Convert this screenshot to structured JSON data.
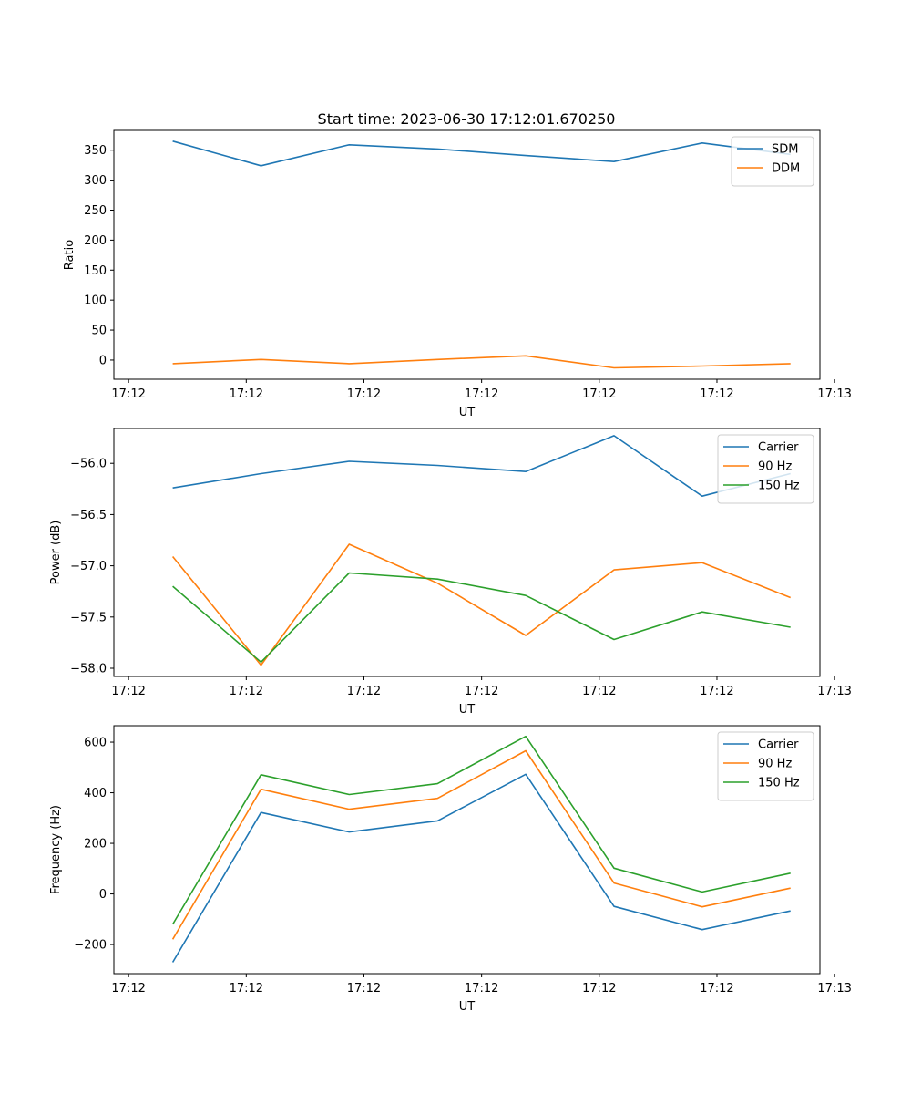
{
  "figure_title": "Start time: 2023-06-30 17:12:01.670250",
  "chart_data": [
    {
      "type": "line",
      "title": "Start time: 2023-06-30 17:12:01.670250",
      "xlabel": "UT",
      "ylabel": "Ratio",
      "x_ticks": [
        "17:12",
        "17:12",
        "17:12",
        "17:12",
        "17:12",
        "17:12",
        "17:13"
      ],
      "y_ticks": [
        0,
        50,
        100,
        150,
        200,
        250,
        300,
        350
      ],
      "xlim": [
        0,
        24
      ],
      "ylim": [
        -32,
        383
      ],
      "legend": "top-right",
      "x": [
        2,
        5,
        8,
        11,
        14,
        17,
        20,
        23
      ],
      "series": [
        {
          "name": "SDM",
          "color": "#1f77b4",
          "values": [
            365,
            324,
            359,
            352,
            341,
            331,
            362,
            343
          ]
        },
        {
          "name": "DDM",
          "color": "#ff7f0e",
          "values": [
            -6,
            1,
            -6,
            1,
            7,
            -13,
            -10,
            -6
          ]
        }
      ]
    },
    {
      "type": "line",
      "title": "",
      "xlabel": "UT",
      "ylabel": "Power (dB)",
      "x_ticks": [
        "17:12",
        "17:12",
        "17:12",
        "17:12",
        "17:12",
        "17:12",
        "17:13"
      ],
      "y_ticks": [
        -58.0,
        -57.5,
        -57.0,
        -56.5,
        -56.0
      ],
      "y_tick_labels": [
        "−58.0",
        "−57.5",
        "−57.0",
        "−56.5",
        "−56.0"
      ],
      "xlim": [
        0,
        24
      ],
      "ylim": [
        -58.08,
        -55.66
      ],
      "legend": "top-right",
      "x": [
        2,
        5,
        8,
        11,
        14,
        17,
        20,
        23
      ],
      "series": [
        {
          "name": "Carrier",
          "color": "#1f77b4",
          "values": [
            -56.24,
            -56.1,
            -55.98,
            -56.02,
            -56.08,
            -55.73,
            -56.32,
            -56.1
          ]
        },
        {
          "name": "90 Hz",
          "color": "#ff7f0e",
          "values": [
            -56.91,
            -57.97,
            -56.79,
            -57.17,
            -57.68,
            -57.04,
            -56.97,
            -57.31
          ]
        },
        {
          "name": "150 Hz",
          "color": "#2ca02c",
          "values": [
            -57.2,
            -57.94,
            -57.07,
            -57.13,
            -57.29,
            -57.72,
            -57.45,
            -57.6
          ]
        }
      ]
    },
    {
      "type": "line",
      "title": "",
      "xlabel": "UT",
      "ylabel": "Frequency (Hz)",
      "x_ticks": [
        "17:12",
        "17:12",
        "17:12",
        "17:12",
        "17:12",
        "17:12",
        "17:13"
      ],
      "y_ticks": [
        -200,
        0,
        200,
        400,
        600
      ],
      "y_tick_labels": [
        "−200",
        "0",
        "200",
        "400",
        "600"
      ],
      "xlim": [
        0,
        24
      ],
      "ylim": [
        -315,
        665
      ],
      "legend": "top-right",
      "x": [
        2,
        5,
        8,
        11,
        14,
        17,
        20,
        23
      ],
      "series": [
        {
          "name": "Carrier",
          "color": "#1f77b4",
          "values": [
            -270,
            322,
            245,
            289,
            473,
            -49,
            -141,
            -67
          ]
        },
        {
          "name": "90 Hz",
          "color": "#ff7f0e",
          "values": [
            -179,
            414,
            335,
            378,
            566,
            43,
            -51,
            23
          ]
        },
        {
          "name": "150 Hz",
          "color": "#2ca02c",
          "values": [
            -120,
            471,
            393,
            436,
            623,
            102,
            8,
            82
          ]
        }
      ]
    }
  ]
}
